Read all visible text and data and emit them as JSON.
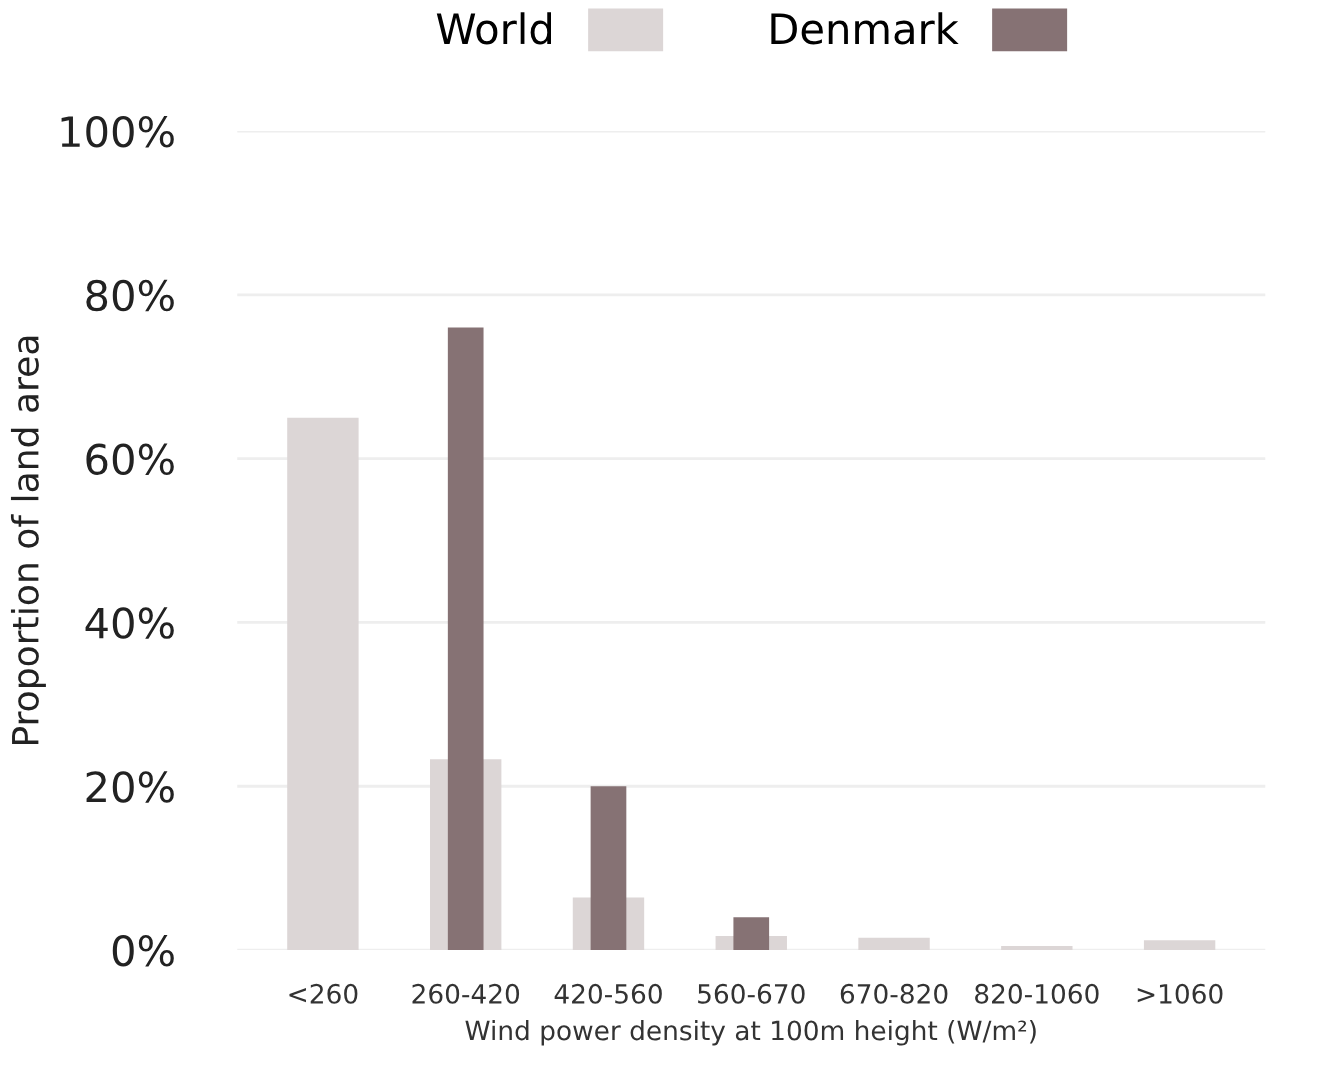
{
  "chart_data": {
    "type": "bar",
    "xlabel": "Wind power density at 100m height (W/m²)",
    "ylabel": "Proportion of land area",
    "categories": [
      "<260",
      "260-420",
      "420-560",
      "560-670",
      "670-820",
      "820-1060",
      ">1060"
    ],
    "series": [
      {
        "name": "World",
        "color": "#dcd6d6",
        "values": [
          65,
          23.3,
          6.4,
          1.7,
          1.5,
          0.5,
          1.2
        ]
      },
      {
        "name": "Denmark",
        "color": "#867274",
        "values": [
          0,
          76,
          20,
          4,
          0,
          0,
          0
        ]
      }
    ],
    "ylim": [
      0,
      100
    ],
    "yticks": [
      {
        "value": 0,
        "label": "0%"
      },
      {
        "value": 20,
        "label": "20%"
      },
      {
        "value": 40,
        "label": "40%"
      },
      {
        "value": 60,
        "label": "60%"
      },
      {
        "value": 80,
        "label": "80%"
      },
      {
        "value": 100,
        "label": "100%"
      }
    ],
    "grid": "y",
    "legend": "top"
  }
}
